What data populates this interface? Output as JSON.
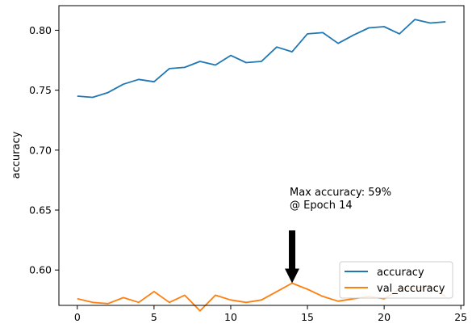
{
  "chart_data": {
    "type": "line",
    "title": "",
    "xlabel": "",
    "ylabel": "accuracy",
    "xlim": [
      -1.2,
      25.2
    ],
    "ylim": [
      0.5705,
      0.8205
    ],
    "xticks": [
      0,
      5,
      10,
      15,
      20,
      25
    ],
    "yticks": [
      0.6,
      0.65,
      0.7,
      0.75,
      0.8
    ],
    "grid": false,
    "legend_position": "lower-right",
    "x": [
      0,
      1,
      2,
      3,
      4,
      5,
      6,
      7,
      8,
      9,
      10,
      11,
      12,
      13,
      14,
      15,
      16,
      17,
      18,
      19,
      20,
      21,
      22,
      23,
      24
    ],
    "series": [
      {
        "name": "accuracy",
        "color": "#1f77b4",
        "values": [
          0.745,
          0.744,
          0.748,
          0.755,
          0.759,
          0.757,
          0.768,
          0.769,
          0.774,
          0.771,
          0.779,
          0.773,
          0.774,
          0.786,
          0.782,
          0.797,
          0.798,
          0.789,
          0.796,
          0.802,
          0.803,
          0.797,
          0.809,
          0.806,
          0.807
        ]
      },
      {
        "name": "val_accuracy",
        "color": "#ff7f0e",
        "values": [
          0.576,
          0.573,
          0.572,
          0.577,
          0.573,
          0.582,
          0.573,
          0.579,
          0.566,
          0.579,
          0.575,
          0.573,
          0.575,
          0.582,
          0.589,
          0.584,
          0.578,
          0.574,
          0.576,
          0.578,
          0.576,
          0.584,
          0.585,
          0.586,
          0.578
        ]
      }
    ],
    "annotation": {
      "line1": "Max accuracy: 59%",
      "line2": "@ Epoch 14",
      "arrow_target": {
        "x": 14,
        "y": 0.589
      },
      "arrow_tail_y": 0.633
    }
  }
}
